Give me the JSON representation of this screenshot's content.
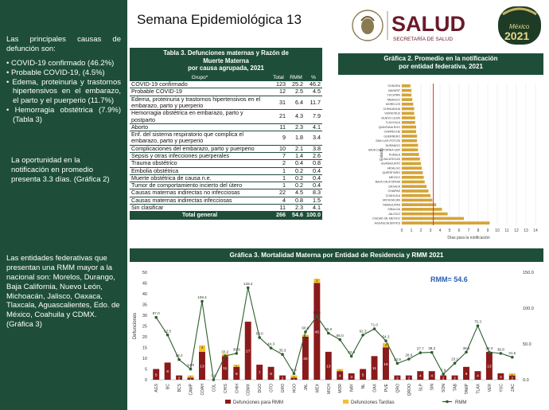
{
  "page_title": "Semana Epidemiológica 13",
  "logos": {
    "salud": "SALUD",
    "salud_sub": "SECRETARÍA DE SALUD",
    "mexico_year": "2021",
    "mexico_text": "México"
  },
  "sidebar": {
    "intro": "Las principales causas de defunción son:",
    "causes": [
      "COVID-19 confirmado (46.2%)",
      "Probable COVID-19, (4.5%)",
      "Edema, proteinuria y trastornos hipertensivos en el embarazo, el parto y el puerperio (11.7%)",
      "Hemorragia obstétrica (7.9%) (Tabla 3)"
    ],
    "notification": "La oportunidad en la notificación en promedio presenta 3.3 días. (Gráfica 2)",
    "states": "Las entidades federativas que presentan una RMM mayor a la nacional son: Morelos, Durango, Baja California, Nuevo León, Michoacán, Jalisco, Oaxaca, Tlaxcala, Aguascalientes, Edo. de México, Coahuila y CDMX. (Gráfica 3)"
  },
  "table3": {
    "title_lines": [
      "Tabla 3. Defunciones maternas y Razón de",
      "Muerte Materna",
      "por causa agrupada, 2021"
    ],
    "headers": [
      "Grupo*",
      "Total",
      "RMM",
      "%"
    ],
    "rows": [
      [
        "COVID-19 confirmado",
        "123",
        "25.2",
        "46.2"
      ],
      [
        "Probable COVID-19",
        "12",
        "2.5",
        "4.5"
      ],
      [
        "Edema, proteinuria y trastornos hipertensivos en el embarazo, parto y puerperio",
        "31",
        "6.4",
        "11.7"
      ],
      [
        "Hemorragia obstétrica en embarazo, parto y postparto",
        "21",
        "4.3",
        "7.9"
      ],
      [
        "Aborto",
        "11",
        "2.3",
        "4.1"
      ],
      [
        "Enf. del sistema respiratorio que complica el embarazo, parto y puerperio",
        "9",
        "1.8",
        "3.4"
      ],
      [
        "Complicaciones del embarazo, parto y puerperio",
        "10",
        "2.1",
        "3.8"
      ],
      [
        "Sepsis y otras infecciones puerperales",
        "7",
        "1.4",
        "2.6"
      ],
      [
        "Trauma obstétrico",
        "2",
        "0.4",
        "0.8"
      ],
      [
        "Embolia obstétrica",
        "1",
        "0.2",
        "0.4"
      ],
      [
        "Muerte obstétrica de causa n.e.",
        "1",
        "0.2",
        "0.4"
      ],
      [
        "Tumor de comportamiento incierto del útero",
        "1",
        "0.2",
        "0.4"
      ],
      [
        "Causas maternas indirectas no infecciosas",
        "22",
        "4.5",
        "8.3"
      ],
      [
        "Causas maternas indirectas infecciosas",
        "4",
        "0.8",
        "1.5"
      ],
      [
        "Sin clasificar",
        "11",
        "2.3",
        "4.1"
      ]
    ],
    "total": [
      "Total general",
      "266",
      "54.6",
      "100.0"
    ]
  },
  "chart2": {
    "title_lines": [
      "Gráfica 2. Promedio en la notificación",
      "por entidad federativa, 2021"
    ],
    "xlabel": "Días para la notificación",
    "ylabel": "Estado"
  },
  "chart3": {
    "title": "Gráfica 3.  Mortalidad Materna por Entidad de Residencia  y RMM 2021",
    "rmm_label": "RMM= 54.6"
  },
  "chart_data": [
    {
      "type": "bar",
      "orientation": "horizontal",
      "title": "Gráfica 2. Promedio en la notificación por entidad federativa, 2021",
      "xlabel": "Días para la notificación",
      "ylabel": "Estado",
      "xlim": [
        0,
        14
      ],
      "xticks": [
        0,
        1,
        2,
        3,
        4,
        5,
        6,
        7,
        8,
        9,
        10,
        11,
        12,
        13,
        14
      ],
      "reference_line": 3.3,
      "categories": [
        "SONORA",
        "NAYARIT",
        "YUCATAN",
        "TABASCO",
        "MORELOS",
        "CHIHUAHUA",
        "VERACRUZ",
        "NUEVO LEON",
        "TLAXCALA",
        "QUINTANA ROO",
        "CAMPECHE",
        "GUERRERO",
        "SAN LUIS POTOSI",
        "DURANGO",
        "BAJA CALIFORNIA SUR",
        "PUEBLA",
        "ZACATECAS",
        "GUANAJUATO",
        "HIDALGO",
        "QUERETARO",
        "MEXICO",
        "BAJA CALIFORNIA",
        "OAXACA",
        "CHIAPAS",
        "COAHUILA",
        "MICHOACAN",
        "TAMAULIPAS",
        "SINALOA",
        "JALISCO",
        "CIUDAD DE MEXICO",
        "AGUASCALIENTES"
      ],
      "values": [
        0.9,
        1.0,
        1.0,
        1.1,
        1.2,
        1.3,
        1.3,
        1.4,
        1.4,
        1.5,
        1.5,
        1.6,
        1.6,
        1.7,
        1.7,
        1.8,
        1.9,
        2.0,
        2.1,
        2.2,
        2.3,
        2.4,
        2.6,
        2.8,
        3.0,
        3.2,
        3.6,
        4.2,
        4.8,
        6.5,
        9.2
      ],
      "color": "#d4a437"
    },
    {
      "type": "bar+line",
      "title": "Gráfica 3.  Mortalidad Materna por Entidad de Residencia  y RMM 2021",
      "ylabel": "Defunciones",
      "ylim": [
        0,
        50
      ],
      "y2lim": [
        0,
        150
      ],
      "yticks": [
        0,
        5,
        10,
        15,
        20,
        25,
        30,
        35,
        40,
        45,
        50
      ],
      "y2ticks": [
        0.0,
        50.0,
        100.0,
        150.0
      ],
      "categories": [
        "AGS",
        "BC",
        "BCS",
        "CAMP",
        "COAH",
        "COL",
        "CHIS",
        "CHIH",
        "CDMX",
        "DGO",
        "GTO",
        "GRO",
        "HGO",
        "JAL",
        "MEX",
        "MICH",
        "MOR",
        "NAY",
        "NL",
        "OAX",
        "PUE",
        "QRO",
        "QROO",
        "SLP",
        "SIN",
        "SON",
        "TAB",
        "TAMP",
        "TLAX",
        "VER",
        "YUC",
        "ZAC"
      ],
      "series": [
        {
          "name": "Defunciones para RMM",
          "color": "#8b1a1a",
          "values": [
            5,
            8,
            2,
            1,
            13,
            0,
            11,
            6,
            27,
            7,
            6,
            2,
            1,
            20,
            45,
            13,
            4,
            3,
            5,
            11,
            15,
            2,
            2,
            4,
            4,
            2,
            2,
            6,
            4,
            13,
            3,
            2
          ]
        },
        {
          "name": "Defunciones Tardías",
          "color": "#f2c12e",
          "values": [
            0,
            0,
            0,
            1,
            3,
            0,
            1,
            1,
            0,
            0,
            0,
            0,
            1,
            1,
            2,
            0,
            1,
            0,
            0,
            0,
            2,
            0,
            0,
            0,
            0,
            0,
            0,
            0,
            0,
            0,
            0,
            1
          ]
        },
        {
          "name": "RMM",
          "color": "#2e5e2e",
          "axis": "secondary",
          "values": [
            87.0,
            62.5,
            28.2,
            14.9,
            109.4,
            0.0,
            33.2,
            36.8,
            128.4,
            59.0,
            44.3,
            35.3,
            8.6,
            66.8,
            88.6,
            65.0,
            56.0,
            32.9,
            62.3,
            71.0,
            54.3,
            22.9,
            28.9,
            37.7,
            38.2,
            7.9,
            23.1,
            38.5,
            75.3,
            38.3,
            36.8,
            31.5
          ]
        }
      ],
      "annotations": [
        "RMM= 54.6"
      ]
    }
  ]
}
